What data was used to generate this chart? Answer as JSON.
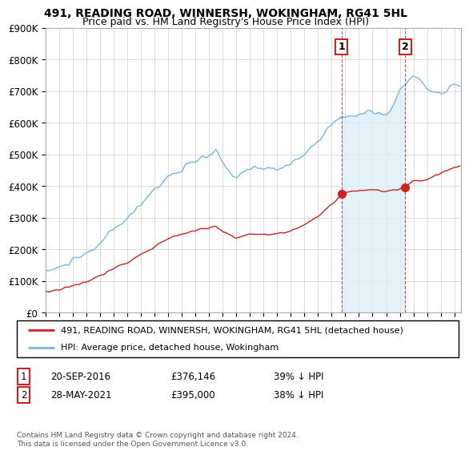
{
  "title": "491, READING ROAD, WINNERSH, WOKINGHAM, RG41 5HL",
  "subtitle": "Price paid vs. HM Land Registry's House Price Index (HPI)",
  "ylim": [
    0,
    900000
  ],
  "ytick_vals": [
    0,
    100000,
    200000,
    300000,
    400000,
    500000,
    600000,
    700000,
    800000,
    900000
  ],
  "ytick_labels": [
    "£0",
    "£100K",
    "£200K",
    "£300K",
    "£400K",
    "£500K",
    "£600K",
    "£700K",
    "£800K",
    "£900K"
  ],
  "xlim_start": 1995.0,
  "xlim_end": 2025.5,
  "hpi_color": "#7bb5d8",
  "hpi_fill_color": "#ddeef7",
  "price_color": "#cc2222",
  "vline_color": "#cc2222",
  "transaction1_year": 2016.72,
  "transaction1_price": 376146,
  "transaction2_year": 2021.4,
  "transaction2_price": 395000,
  "legend_entry1": "491, READING ROAD, WINNERSH, WOKINGHAM, RG41 5HL (detached house)",
  "legend_entry2": "HPI: Average price, detached house, Wokingham",
  "table_row1_num": "1",
  "table_row1_date": "20-SEP-2016",
  "table_row1_price": "£376,146",
  "table_row1_pct": "39% ↓ HPI",
  "table_row2_num": "2",
  "table_row2_date": "28-MAY-2021",
  "table_row2_price": "£395,000",
  "table_row2_pct": "38% ↓ HPI",
  "copyright": "Contains HM Land Registry data © Crown copyright and database right 2024.\nThis data is licensed under the Open Government Licence v3.0.",
  "background_color": "#ffffff",
  "grid_color": "#cccccc",
  "title_fontsize": 10,
  "subtitle_fontsize": 9
}
